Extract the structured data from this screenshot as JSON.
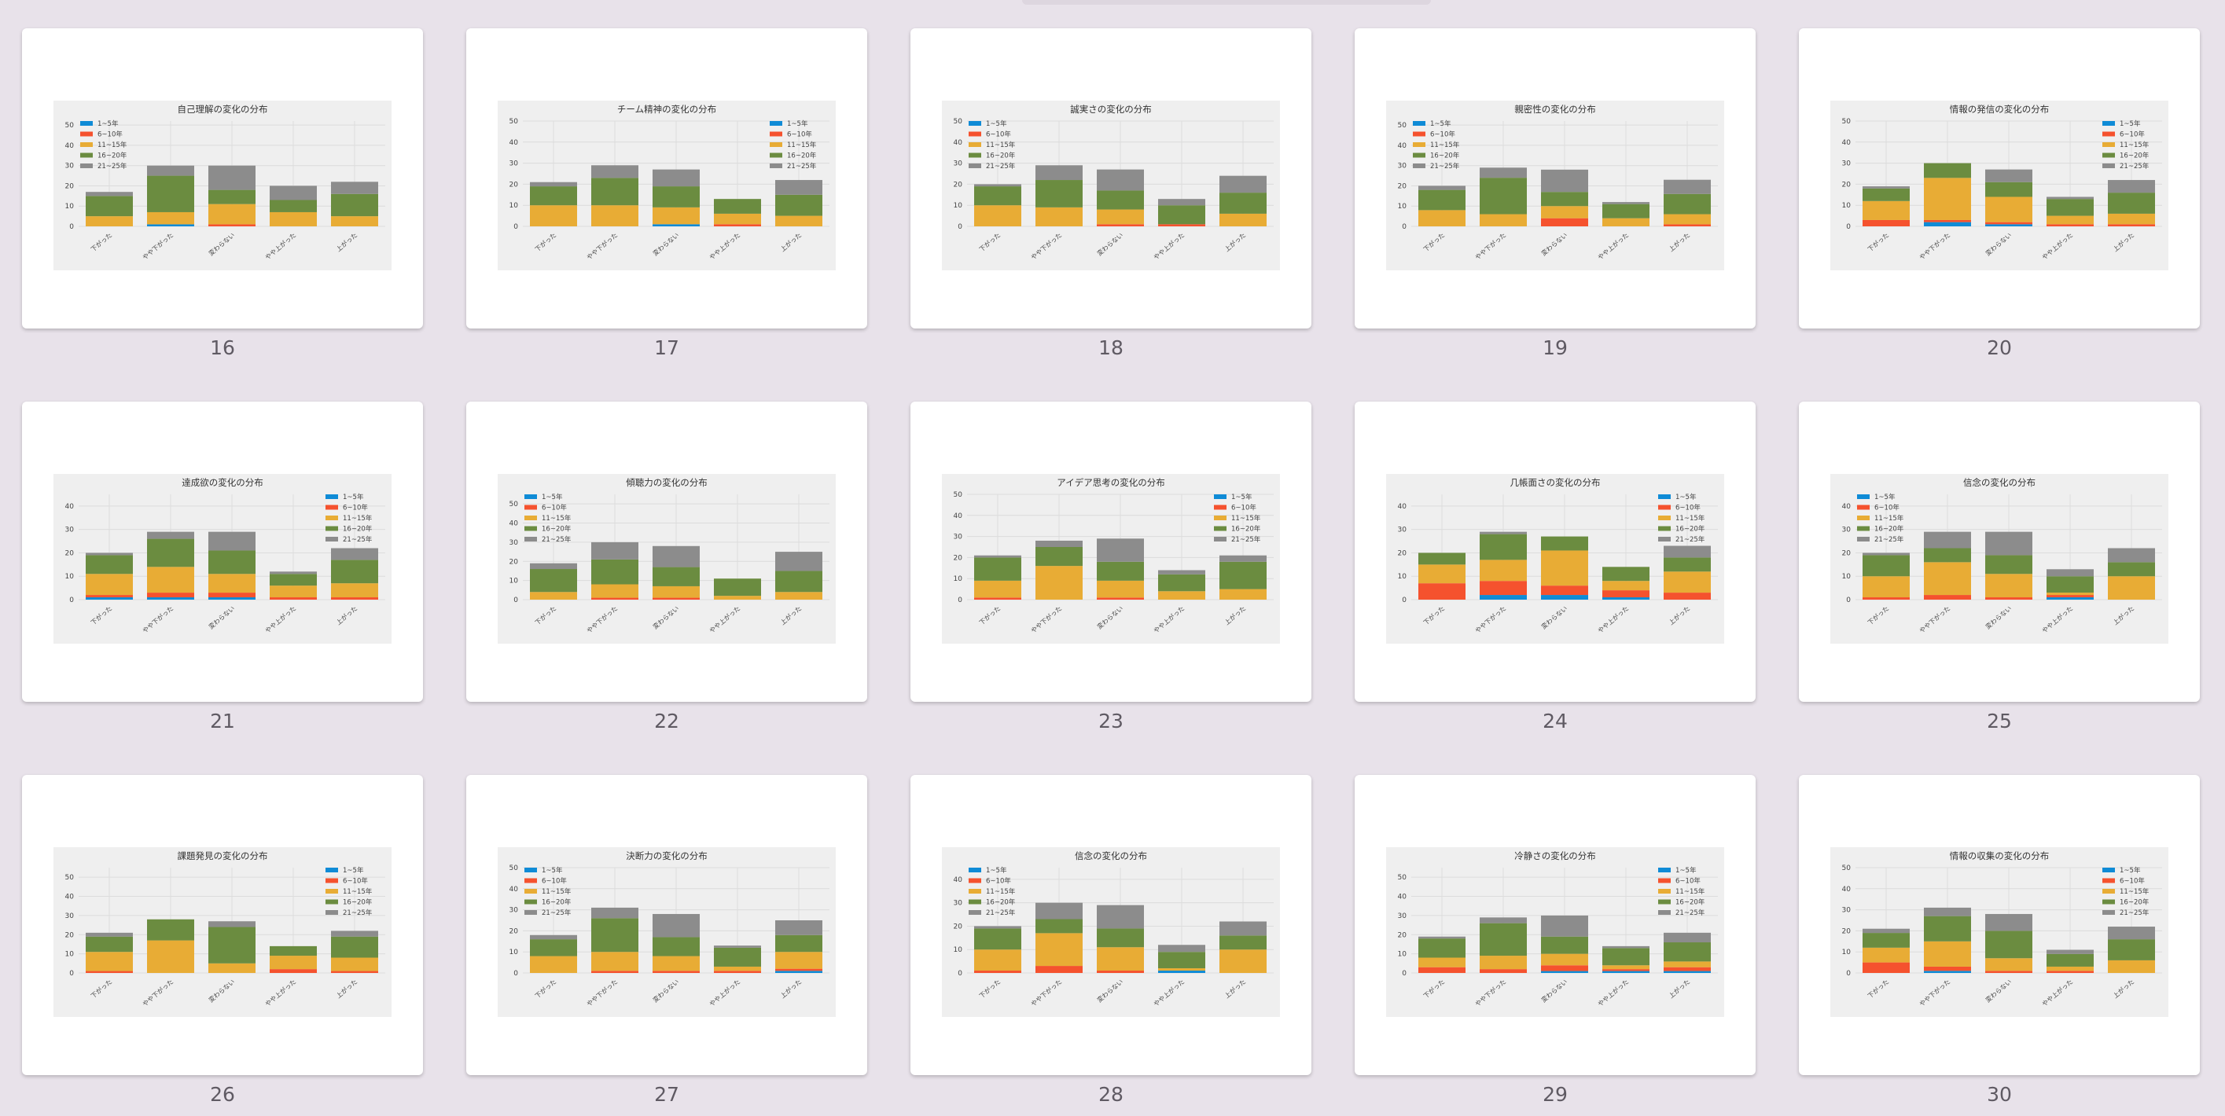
{
  "colors": {
    "background": "#e8e2ea",
    "slide": "#ffffff",
    "plot_bg": "#efefef",
    "series": [
      "#0f8bd6",
      "#f5522e",
      "#e8ac35",
      "#6b8c40",
      "#8c8c8c"
    ]
  },
  "legend_labels": [
    "1~5年",
    "6~10年",
    "11~15年",
    "16~20年",
    "21~25年"
  ],
  "categories": [
    "下がった",
    "やや下がった",
    "変わらない",
    "やや上がった",
    "上がった"
  ],
  "slides": [
    {
      "number": "16",
      "chart_data": {
        "type": "bar",
        "stacked": true,
        "title": "自己理解の変化の分布",
        "legend": "top-left",
        "ylim": [
          0,
          52
        ],
        "yticks": [
          0,
          10,
          20,
          30,
          40,
          50
        ],
        "values": [
          [
            0,
            1,
            0,
            0,
            0
          ],
          [
            0,
            0,
            1,
            0,
            0
          ],
          [
            5,
            6,
            10,
            7,
            5
          ],
          [
            10,
            18,
            7,
            6,
            11
          ],
          [
            2,
            5,
            12,
            7,
            6
          ]
        ]
      }
    },
    {
      "number": "17",
      "chart_data": {
        "type": "bar",
        "stacked": true,
        "title": "チーム精神の変化の分布",
        "legend": "top-right",
        "ylim": [
          0,
          50
        ],
        "yticks": [
          0,
          10,
          20,
          30,
          40,
          50
        ],
        "values": [
          [
            0,
            0,
            1,
            0,
            0
          ],
          [
            0,
            0,
            0,
            1,
            0
          ],
          [
            10,
            10,
            8,
            5,
            5
          ],
          [
            9,
            13,
            10,
            7,
            10
          ],
          [
            2,
            6,
            8,
            0,
            7
          ]
        ]
      }
    },
    {
      "number": "18",
      "chart_data": {
        "type": "bar",
        "stacked": true,
        "title": "誠実さの変化の分布",
        "legend": "top-left",
        "ylim": [
          0,
          50
        ],
        "yticks": [
          0,
          10,
          20,
          30,
          40,
          50
        ],
        "values": [
          [
            0,
            0,
            0,
            0,
            0
          ],
          [
            0,
            0,
            1,
            1,
            0
          ],
          [
            10,
            9,
            7,
            0,
            6
          ],
          [
            9,
            13,
            9,
            9,
            10
          ],
          [
            1,
            7,
            10,
            3,
            8
          ]
        ]
      }
    },
    {
      "number": "19",
      "chart_data": {
        "type": "bar",
        "stacked": true,
        "title": "親密性の変化の分布",
        "legend": "top-left",
        "ylim": [
          0,
          52
        ],
        "yticks": [
          0,
          10,
          20,
          30,
          40,
          50
        ],
        "values": [
          [
            0,
            0,
            0,
            0,
            0
          ],
          [
            0,
            0,
            4,
            0,
            1
          ],
          [
            8,
            6,
            6,
            4,
            5
          ],
          [
            10,
            18,
            7,
            7,
            10
          ],
          [
            2,
            5,
            11,
            1,
            7
          ]
        ]
      }
    },
    {
      "number": "20",
      "chart_data": {
        "type": "bar",
        "stacked": true,
        "title": "情報の発信の変化の分布",
        "legend": "top-right",
        "ylim": [
          0,
          50
        ],
        "yticks": [
          0,
          10,
          20,
          30,
          40,
          50
        ],
        "values": [
          [
            0,
            2,
            1,
            0,
            0
          ],
          [
            3,
            1,
            1,
            1,
            1
          ],
          [
            9,
            20,
            12,
            4,
            5
          ],
          [
            6,
            7,
            7,
            8,
            10
          ],
          [
            1,
            0,
            6,
            1,
            6
          ]
        ]
      }
    },
    {
      "number": "21",
      "chart_data": {
        "type": "bar",
        "stacked": true,
        "title": "達成欲の変化の分布",
        "legend": "top-right",
        "ylim": [
          0,
          45
        ],
        "yticks": [
          0,
          10,
          20,
          30,
          40
        ],
        "values": [
          [
            1,
            1,
            1,
            0,
            0
          ],
          [
            1,
            2,
            2,
            1,
            1
          ],
          [
            9,
            11,
            8,
            5,
            6
          ],
          [
            8,
            12,
            10,
            5,
            10
          ],
          [
            1,
            3,
            8,
            1,
            5
          ]
        ]
      }
    },
    {
      "number": "22",
      "chart_data": {
        "type": "bar",
        "stacked": true,
        "title": "傾聴力の変化の分布",
        "legend": "top-left",
        "ylim": [
          0,
          55
        ],
        "yticks": [
          0,
          10,
          20,
          30,
          40,
          50
        ],
        "values": [
          [
            0,
            0,
            0,
            0,
            0
          ],
          [
            0,
            1,
            1,
            0,
            0
          ],
          [
            4,
            7,
            6,
            2,
            4
          ],
          [
            12,
            13,
            10,
            9,
            11
          ],
          [
            3,
            9,
            11,
            0,
            10
          ]
        ]
      }
    },
    {
      "number": "23",
      "chart_data": {
        "type": "bar",
        "stacked": true,
        "title": "アイデア思考の変化の分布",
        "legend": "top-right",
        "ylim": [
          0,
          50
        ],
        "yticks": [
          0,
          10,
          20,
          30,
          40,
          50
        ],
        "values": [
          [
            0,
            0,
            0,
            0,
            0
          ],
          [
            1,
            0,
            1,
            0,
            0
          ],
          [
            8,
            16,
            8,
            4,
            5
          ],
          [
            11,
            9,
            9,
            8,
            13
          ],
          [
            1,
            3,
            11,
            2,
            3
          ]
        ]
      }
    },
    {
      "number": "24",
      "chart_data": {
        "type": "bar",
        "stacked": true,
        "title": "几帳面さの変化の分布",
        "legend": "top-right",
        "ylim": [
          0,
          45
        ],
        "yticks": [
          0,
          10,
          20,
          30,
          40
        ],
        "values": [
          [
            0,
            2,
            2,
            1,
            0
          ],
          [
            7,
            6,
            4,
            3,
            3
          ],
          [
            8,
            9,
            15,
            4,
            9
          ],
          [
            5,
            11,
            6,
            6,
            6
          ],
          [
            0,
            1,
            0,
            0,
            5
          ]
        ]
      }
    },
    {
      "number": "25",
      "chart_data": {
        "type": "bar",
        "stacked": true,
        "title": "信念の変化の分布",
        "legend": "top-left",
        "ylim": [
          0,
          45
        ],
        "yticks": [
          0,
          10,
          20,
          30,
          40
        ],
        "values": [
          [
            0,
            0,
            0,
            1,
            0
          ],
          [
            1,
            2,
            1,
            1,
            0
          ],
          [
            9,
            14,
            10,
            1,
            10
          ],
          [
            9,
            6,
            8,
            7,
            6
          ],
          [
            1,
            7,
            10,
            3,
            6
          ]
        ]
      }
    },
    {
      "number": "26",
      "chart_data": {
        "type": "bar",
        "stacked": true,
        "title": "課題発見の変化の分布",
        "legend": "top-right",
        "ylim": [
          0,
          55
        ],
        "yticks": [
          0,
          10,
          20,
          30,
          40,
          50
        ],
        "values": [
          [
            0,
            0,
            0,
            0,
            0
          ],
          [
            1,
            0,
            0,
            2,
            1
          ],
          [
            10,
            17,
            5,
            7,
            7
          ],
          [
            8,
            11,
            19,
            5,
            11
          ],
          [
            2,
            0,
            3,
            0,
            3
          ]
        ]
      }
    },
    {
      "number": "27",
      "chart_data": {
        "type": "bar",
        "stacked": true,
        "title": "決断力の変化の分布",
        "legend": "top-left",
        "ylim": [
          0,
          50
        ],
        "yticks": [
          0,
          10,
          20,
          30,
          40,
          50
        ],
        "values": [
          [
            0,
            0,
            0,
            0,
            1
          ],
          [
            0,
            1,
            1,
            1,
            1
          ],
          [
            8,
            9,
            7,
            2,
            8
          ],
          [
            8,
            16,
            9,
            9,
            8
          ],
          [
            2,
            5,
            11,
            1,
            7
          ]
        ]
      }
    },
    {
      "number": "28",
      "chart_data": {
        "type": "bar",
        "stacked": true,
        "title": "信念の変化の分布",
        "legend": "top-left",
        "ylim": [
          0,
          45
        ],
        "yticks": [
          0,
          10,
          20,
          30,
          40
        ],
        "values": [
          [
            0,
            0,
            0,
            1,
            0
          ],
          [
            1,
            3,
            1,
            0,
            0
          ],
          [
            9,
            14,
            10,
            1,
            10
          ],
          [
            9,
            6,
            8,
            7,
            6
          ],
          [
            1,
            7,
            10,
            3,
            6
          ]
        ]
      }
    },
    {
      "number": "29",
      "chart_data": {
        "type": "bar",
        "stacked": true,
        "title": "冷静さの変化の分布",
        "legend": "top-right",
        "ylim": [
          0,
          55
        ],
        "yticks": [
          0,
          10,
          20,
          30,
          40,
          50
        ],
        "values": [
          [
            0,
            0,
            1,
            1,
            1
          ],
          [
            3,
            2,
            3,
            1,
            2
          ],
          [
            5,
            7,
            6,
            2,
            3
          ],
          [
            10,
            17,
            9,
            9,
            10
          ],
          [
            1,
            3,
            11,
            1,
            5
          ]
        ]
      }
    },
    {
      "number": "30",
      "chart_data": {
        "type": "bar",
        "stacked": true,
        "title": "情報の収集の変化の分布",
        "legend": "top-right",
        "ylim": [
          0,
          50
        ],
        "yticks": [
          0,
          10,
          20,
          30,
          40,
          50
        ],
        "values": [
          [
            0,
            1,
            0,
            0,
            0
          ],
          [
            5,
            2,
            1,
            1,
            0
          ],
          [
            7,
            12,
            6,
            2,
            6
          ],
          [
            7,
            12,
            13,
            6,
            10
          ],
          [
            2,
            4,
            8,
            2,
            6
          ]
        ]
      }
    }
  ]
}
